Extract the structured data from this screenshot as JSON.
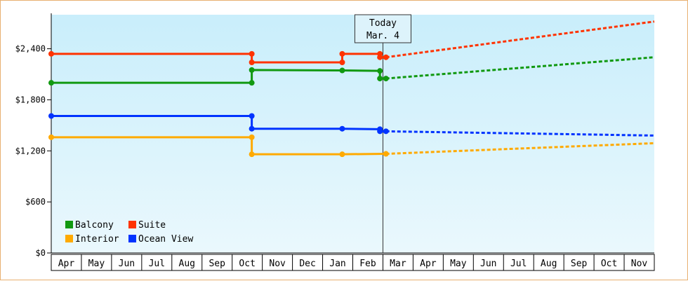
{
  "chart_data": {
    "type": "line",
    "title": "",
    "xlabel": "",
    "ylabel": "",
    "ylim": [
      0,
      2800
    ],
    "yticks": [
      "$0",
      "$600",
      "$1,200",
      "$1,800",
      "$2,400"
    ],
    "ytick_values": [
      0,
      600,
      1200,
      1800,
      2400
    ],
    "grid": false,
    "legend_position": "bottom-left",
    "months": [
      "Apr",
      "May",
      "Jun",
      "Jul",
      "Aug",
      "Sep",
      "Oct",
      "Nov",
      "Dec",
      "Jan",
      "Feb",
      "Mar",
      "Apr",
      "May",
      "Jun",
      "Jul",
      "Aug",
      "Sep",
      "Oct",
      "Nov"
    ],
    "today_marker": {
      "label": "Today",
      "date": "Mar. 4",
      "x": 10.1
    },
    "series": [
      {
        "name": "Balcony",
        "color": "#119911",
        "history": [
          [
            0,
            2000
          ],
          [
            6.65,
            2000
          ],
          [
            6.65,
            2150
          ],
          [
            9.65,
            2145
          ],
          [
            10.9,
            2140
          ],
          [
            10.9,
            2050
          ],
          [
            11.1,
            2050
          ]
        ],
        "forecast": [
          [
            11.1,
            2050
          ],
          [
            20,
            2300
          ]
        ]
      },
      {
        "name": "Suite",
        "color": "#ff3300",
        "history": [
          [
            0,
            2340
          ],
          [
            6.65,
            2340
          ],
          [
            6.65,
            2240
          ],
          [
            9.65,
            2240
          ],
          [
            9.65,
            2340
          ],
          [
            10.9,
            2340
          ],
          [
            10.9,
            2300
          ],
          [
            11.1,
            2300
          ]
        ],
        "forecast": [
          [
            11.1,
            2300
          ],
          [
            20,
            2720
          ]
        ]
      },
      {
        "name": "Interior",
        "color": "#ffaa00",
        "history": [
          [
            0,
            1360
          ],
          [
            6.65,
            1360
          ],
          [
            6.65,
            1160
          ],
          [
            9.65,
            1160
          ],
          [
            11.1,
            1165
          ]
        ],
        "forecast": [
          [
            11.1,
            1165
          ],
          [
            20,
            1290
          ]
        ]
      },
      {
        "name": "Ocean View",
        "color": "#0033ff",
        "history": [
          [
            0,
            1610
          ],
          [
            6.65,
            1610
          ],
          [
            6.65,
            1460
          ],
          [
            9.65,
            1460
          ],
          [
            10.9,
            1455
          ],
          [
            10.9,
            1430
          ],
          [
            11.1,
            1430
          ]
        ],
        "forecast": [
          [
            11.1,
            1430
          ],
          [
            20,
            1380
          ]
        ]
      }
    ],
    "markers": [
      {
        "series": "Balcony",
        "points": [
          [
            0,
            2000
          ],
          [
            6.65,
            2000
          ],
          [
            6.65,
            2150
          ],
          [
            9.65,
            2145
          ],
          [
            10.9,
            2140
          ],
          [
            10.9,
            2050
          ],
          [
            11.1,
            2050
          ]
        ]
      },
      {
        "series": "Suite",
        "points": [
          [
            0,
            2340
          ],
          [
            6.65,
            2340
          ],
          [
            6.65,
            2240
          ],
          [
            9.65,
            2240
          ],
          [
            9.65,
            2340
          ],
          [
            10.9,
            2340
          ],
          [
            10.9,
            2300
          ],
          [
            11.1,
            2300
          ]
        ]
      },
      {
        "series": "Interior",
        "points": [
          [
            0,
            1360
          ],
          [
            6.65,
            1360
          ],
          [
            6.65,
            1160
          ],
          [
            9.65,
            1160
          ],
          [
            11.1,
            1165
          ]
        ]
      },
      {
        "series": "Ocean View",
        "points": [
          [
            0,
            1610
          ],
          [
            6.65,
            1610
          ],
          [
            6.65,
            1460
          ],
          [
            9.65,
            1460
          ],
          [
            10.9,
            1455
          ],
          [
            10.9,
            1430
          ],
          [
            11.1,
            1430
          ]
        ]
      }
    ],
    "legend": [
      {
        "name": "Balcony",
        "color": "#119911"
      },
      {
        "name": "Suite",
        "color": "#ff3300"
      },
      {
        "name": "Interior",
        "color": "#ffaa00"
      },
      {
        "name": "Ocean View",
        "color": "#0033ff"
      }
    ]
  }
}
